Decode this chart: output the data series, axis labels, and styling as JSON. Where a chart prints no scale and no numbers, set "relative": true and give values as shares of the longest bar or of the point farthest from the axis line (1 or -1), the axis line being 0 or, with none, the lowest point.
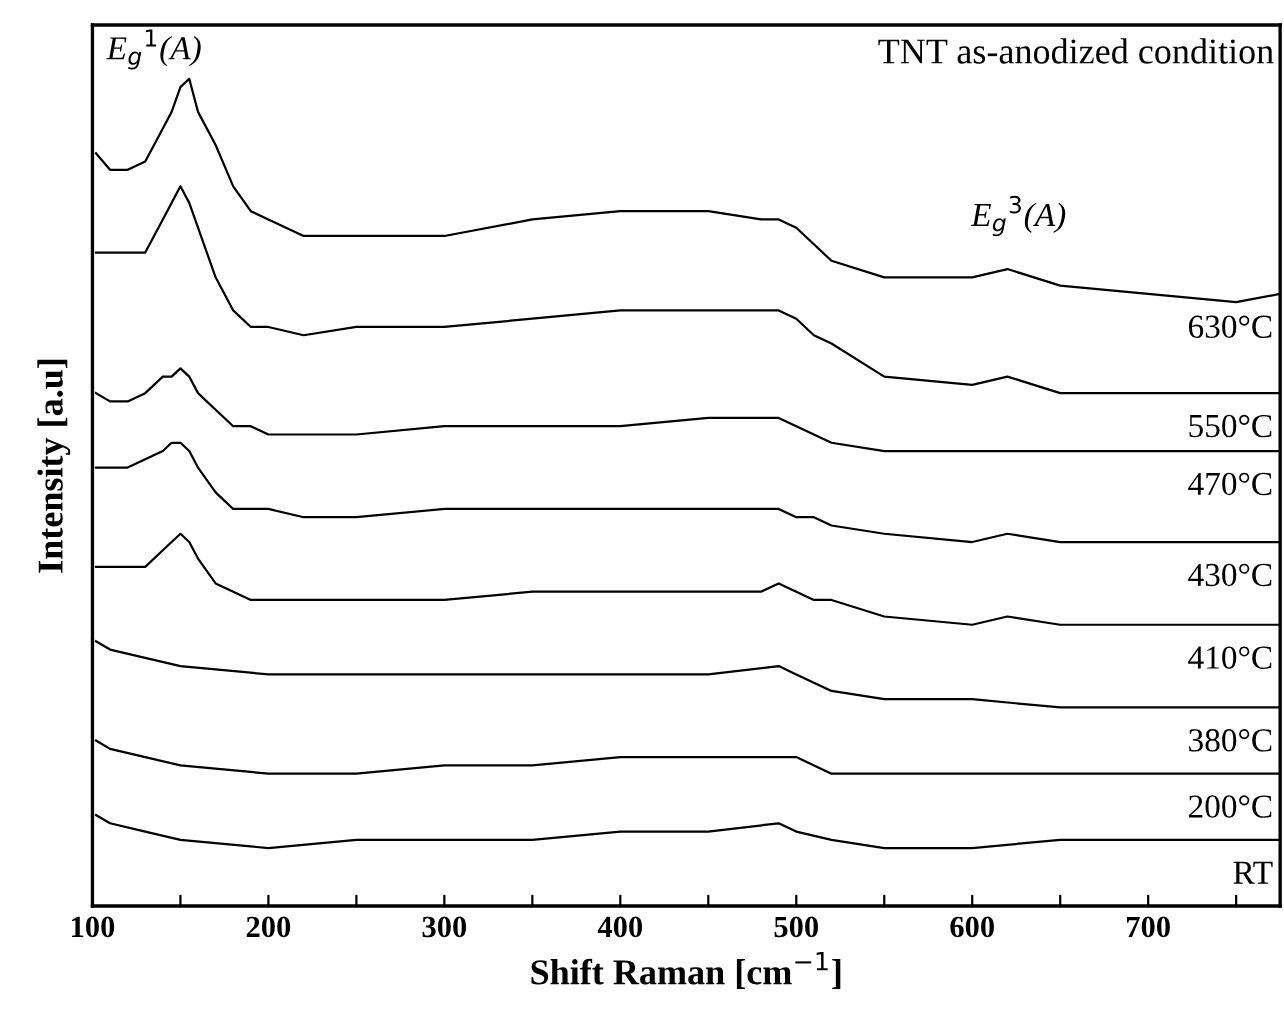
{
  "chart_data": {
    "type": "line",
    "relative": true,
    "title": "TNT as-anodized condition",
    "xlabel": "Shift Raman [cm$^{−1}$]",
    "ylabel": "Intensity [a.u]",
    "xlim": [
      100,
      775
    ],
    "xticks": [
      100,
      {
        "value": 150,
        "label": null
      },
      200,
      {
        "value": 250,
        "label": null
      },
      300,
      {
        "value": 350,
        "label": null
      },
      400,
      {
        "value": 450,
        "label": null
      },
      500,
      {
        "value": 550,
        "label": null
      },
      600,
      {
        "value": 650,
        "label": null
      },
      700,
      {
        "value": 750,
        "label": null
      }
    ],
    "grid": false,
    "legend": false,
    "marker": "none",
    "line_style": "solid",
    "annotations": [
      "E$_{g}$$^{1}$(A)",
      "E$_{g}$$^{3}$(A)"
    ],
    "series": [
      {
        "name": "630°C",
        "color": "#000000",
        "x": [
          102,
          110,
          120,
          130,
          140,
          145,
          150,
          155,
          160,
          170,
          180,
          190,
          200,
          220,
          250,
          300,
          350,
          400,
          450,
          480,
          490,
          500,
          510,
          520,
          550,
          600,
          620,
          650,
          700,
          750,
          775
        ],
        "values": [
          0.91,
          0.89,
          0.89,
          0.9,
          0.94,
          0.96,
          0.99,
          1.0,
          0.96,
          0.92,
          0.87,
          0.84,
          0.83,
          0.81,
          0.81,
          0.81,
          0.83,
          0.84,
          0.84,
          0.83,
          0.83,
          0.82,
          0.8,
          0.78,
          0.76,
          0.76,
          0.77,
          0.75,
          0.74,
          0.73,
          0.74
        ]
      },
      {
        "name": "550°C",
        "color": "#000000",
        "x": [
          102,
          110,
          120,
          130,
          140,
          145,
          150,
          155,
          160,
          170,
          180,
          190,
          200,
          220,
          250,
          300,
          350,
          400,
          450,
          480,
          490,
          500,
          510,
          520,
          550,
          600,
          620,
          650,
          700,
          750,
          775
        ],
        "values": [
          0.79,
          0.79,
          0.79,
          0.79,
          0.83,
          0.85,
          0.87,
          0.85,
          0.82,
          0.76,
          0.72,
          0.7,
          0.7,
          0.69,
          0.7,
          0.7,
          0.71,
          0.72,
          0.72,
          0.72,
          0.72,
          0.71,
          0.69,
          0.68,
          0.64,
          0.63,
          0.64,
          0.62,
          0.62,
          0.62,
          0.62
        ]
      },
      {
        "name": "470°C",
        "color": "#000000",
        "x": [
          102,
          110,
          120,
          130,
          140,
          145,
          150,
          155,
          160,
          170,
          180,
          190,
          200,
          220,
          250,
          300,
          350,
          400,
          450,
          480,
          490,
          500,
          510,
          520,
          550,
          600,
          620,
          650,
          700,
          750,
          775
        ],
        "values": [
          0.62,
          0.61,
          0.61,
          0.62,
          0.64,
          0.64,
          0.65,
          0.64,
          0.62,
          0.6,
          0.58,
          0.58,
          0.57,
          0.57,
          0.57,
          0.58,
          0.58,
          0.58,
          0.59,
          0.59,
          0.59,
          0.58,
          0.57,
          0.56,
          0.55,
          0.55,
          0.55,
          0.55,
          0.55,
          0.55,
          0.55
        ]
      },
      {
        "name": "430°C",
        "color": "#000000",
        "x": [
          102,
          110,
          120,
          130,
          140,
          145,
          150,
          155,
          160,
          170,
          180,
          190,
          200,
          220,
          250,
          300,
          350,
          400,
          450,
          480,
          490,
          500,
          510,
          520,
          550,
          600,
          620,
          650,
          700,
          750,
          775
        ],
        "values": [
          0.53,
          0.53,
          0.53,
          0.54,
          0.55,
          0.56,
          0.56,
          0.55,
          0.53,
          0.5,
          0.48,
          0.48,
          0.48,
          0.47,
          0.47,
          0.48,
          0.48,
          0.48,
          0.48,
          0.48,
          0.48,
          0.47,
          0.47,
          0.46,
          0.45,
          0.44,
          0.45,
          0.44,
          0.44,
          0.44,
          0.44
        ]
      },
      {
        "name": "410°C",
        "color": "#000000",
        "x": [
          102,
          110,
          120,
          130,
          140,
          145,
          150,
          155,
          160,
          170,
          180,
          190,
          200,
          220,
          250,
          300,
          350,
          400,
          450,
          480,
          490,
          500,
          510,
          520,
          550,
          600,
          620,
          650,
          700,
          750,
          775
        ],
        "values": [
          0.41,
          0.41,
          0.41,
          0.41,
          0.43,
          0.44,
          0.45,
          0.44,
          0.42,
          0.39,
          0.38,
          0.37,
          0.37,
          0.37,
          0.37,
          0.37,
          0.38,
          0.38,
          0.38,
          0.38,
          0.39,
          0.38,
          0.37,
          0.37,
          0.35,
          0.34,
          0.35,
          0.34,
          0.34,
          0.34,
          0.34
        ]
      },
      {
        "name": "380°C",
        "color": "#000000",
        "x": [
          102,
          110,
          130,
          150,
          200,
          250,
          300,
          350,
          400,
          450,
          490,
          500,
          520,
          550,
          600,
          650,
          700,
          775
        ],
        "values": [
          0.32,
          0.31,
          0.3,
          0.29,
          0.28,
          0.28,
          0.28,
          0.28,
          0.28,
          0.28,
          0.29,
          0.28,
          0.26,
          0.25,
          0.25,
          0.24,
          0.24,
          0.24
        ]
      },
      {
        "name": "200°C",
        "color": "#000000",
        "x": [
          102,
          110,
          130,
          150,
          200,
          250,
          300,
          350,
          400,
          450,
          490,
          500,
          520,
          550,
          600,
          650,
          700,
          775
        ],
        "values": [
          0.2,
          0.19,
          0.18,
          0.17,
          0.16,
          0.16,
          0.17,
          0.17,
          0.18,
          0.18,
          0.18,
          0.18,
          0.16,
          0.16,
          0.16,
          0.16,
          0.16,
          0.16
        ]
      },
      {
        "name": "RT",
        "color": "#000000",
        "x": [
          102,
          110,
          130,
          150,
          200,
          250,
          300,
          350,
          400,
          450,
          490,
          500,
          520,
          550,
          600,
          650,
          700,
          775
        ],
        "values": [
          0.11,
          0.1,
          0.09,
          0.08,
          0.07,
          0.08,
          0.08,
          0.08,
          0.09,
          0.09,
          0.1,
          0.09,
          0.08,
          0.07,
          0.07,
          0.08,
          0.08,
          0.08
        ]
      }
    ]
  }
}
